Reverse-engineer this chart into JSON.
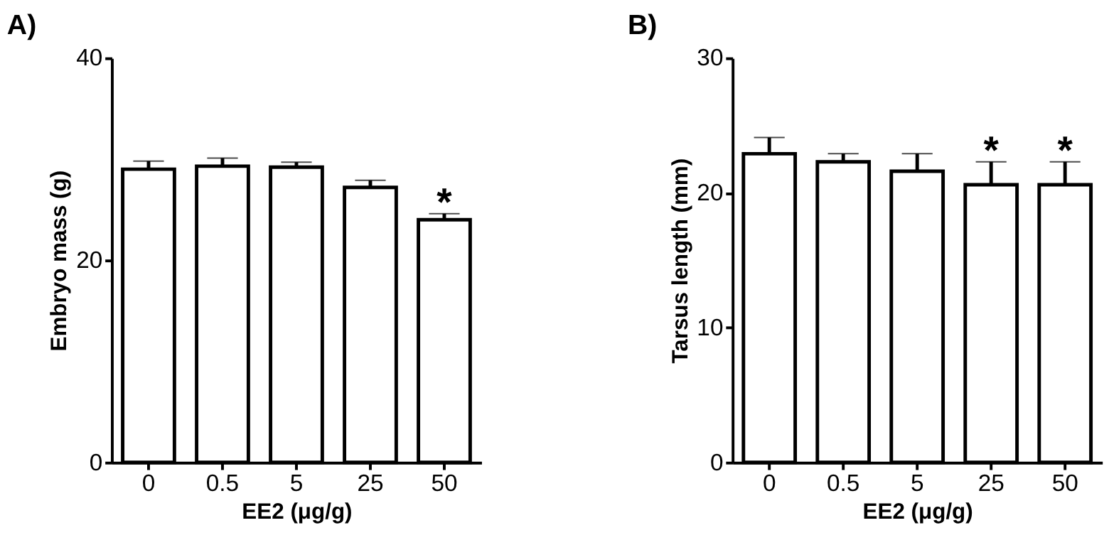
{
  "chart_data": [
    {
      "type": "bar",
      "title": "A)",
      "xlabel": "EE2 (μg/g)",
      "ylabel": "Embryo mass (g)",
      "categories": [
        "0",
        "0.5",
        "5",
        "25",
        "50"
      ],
      "series": [
        {
          "color": "#ffffff",
          "values": [
            29.0,
            29.3,
            29.2,
            27.2,
            24.0
          ],
          "errors": [
            [
              29.0,
              29.8
            ],
            [
              29.3,
              30.1
            ],
            [
              29.2,
              29.7
            ],
            [
              27.2,
              27.9
            ],
            [
              24.0,
              24.6
            ]
          ]
        }
      ],
      "ylim": [
        0,
        40
      ],
      "yticks": [
        0,
        20,
        40
      ],
      "grid": false,
      "annotations": [
        {
          "text": "*",
          "x": "50",
          "y": 24.6
        }
      ]
    },
    {
      "type": "bar",
      "title": "B)",
      "xlabel": "EE2 (μg/g)",
      "ylabel": "Tarsus length (mm)",
      "categories": [
        "0",
        "0.5",
        "5",
        "25",
        "50"
      ],
      "series": [
        {
          "color": "#ffffff",
          "values": [
            22.9,
            22.3,
            21.6,
            20.6,
            20.6
          ],
          "errors": [
            [
              22.9,
              24.1
            ],
            [
              22.3,
              22.9
            ],
            [
              21.6,
              22.9
            ],
            [
              20.6,
              22.3
            ],
            [
              20.6,
              22.3
            ]
          ]
        }
      ],
      "ylim": [
        0,
        30
      ],
      "yticks": [
        0,
        10,
        20,
        30
      ],
      "grid": false,
      "annotations": [
        {
          "text": "*",
          "x": "25",
          "y": 22.3
        },
        {
          "text": "*",
          "x": "50",
          "y": 22.3
        }
      ]
    }
  ]
}
